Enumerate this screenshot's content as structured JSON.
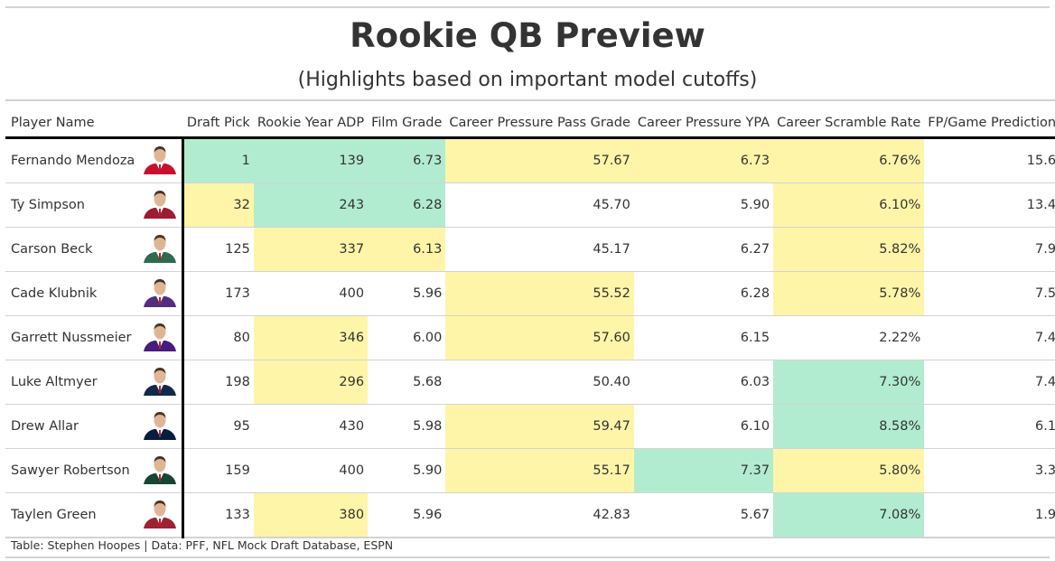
{
  "title": "Rookie QB Preview",
  "subtitle": "(Highlights based on important model cutoffs)",
  "source": "Table: Stephen Hoopes | Data: PFF, NFL Mock Draft Database, ESPN",
  "colors": {
    "green": "#b1ecd0",
    "yellow": "#fef5a8"
  },
  "chart_data": {
    "type": "table",
    "columns": [
      "Player Name",
      "Draft Pick",
      "Rookie Year ADP",
      "Film Grade",
      "Career Pressure Pass Grade",
      "Career Pressure YPA",
      "Career Scramble Rate",
      "FP/Game Prediction"
    ],
    "rows": [
      {
        "name": "Fernando Mendoza",
        "values": [
          "1",
          "139",
          "6.73",
          "57.67",
          "6.73",
          "6.76%",
          "15.6"
        ],
        "highlight": [
          "g",
          "g",
          "g",
          "y",
          "y",
          "y",
          ""
        ],
        "suit": "#c8102e"
      },
      {
        "name": "Ty Simpson",
        "values": [
          "32",
          "243",
          "6.28",
          "45.70",
          "5.90",
          "6.10%",
          "13.4"
        ],
        "highlight": [
          "y",
          "g",
          "g",
          "",
          "",
          "y",
          ""
        ],
        "suit": "#9e1b32"
      },
      {
        "name": "Carson Beck",
        "values": [
          "125",
          "337",
          "6.13",
          "45.17",
          "6.27",
          "5.82%",
          "7.9"
        ],
        "highlight": [
          "",
          "y",
          "y",
          "",
          "",
          "y",
          ""
        ],
        "suit": "#2e6b4f"
      },
      {
        "name": "Cade Klubnik",
        "values": [
          "173",
          "400",
          "5.96",
          "55.52",
          "6.28",
          "5.78%",
          "7.5"
        ],
        "highlight": [
          "",
          "",
          "",
          "y",
          "",
          "y",
          ""
        ],
        "suit": "#522d80"
      },
      {
        "name": "Garrett Nussmeier",
        "values": [
          "80",
          "346",
          "6.00",
          "57.60",
          "6.15",
          "2.22%",
          "7.4"
        ],
        "highlight": [
          "",
          "y",
          "",
          "y",
          "",
          "",
          ""
        ],
        "suit": "#461d7c"
      },
      {
        "name": "Luke Altmyer",
        "values": [
          "198",
          "296",
          "5.68",
          "50.40",
          "6.03",
          "7.30%",
          "7.4"
        ],
        "highlight": [
          "",
          "y",
          "",
          "",
          "",
          "g",
          ""
        ],
        "suit": "#13294b"
      },
      {
        "name": "Drew Allar",
        "values": [
          "95",
          "430",
          "5.98",
          "59.47",
          "6.10",
          "8.58%",
          "6.1"
        ],
        "highlight": [
          "",
          "",
          "",
          "y",
          "",
          "g",
          ""
        ],
        "suit": "#041e42"
      },
      {
        "name": "Sawyer Robertson",
        "values": [
          "159",
          "400",
          "5.90",
          "55.17",
          "7.37",
          "5.80%",
          "3.3"
        ],
        "highlight": [
          "",
          "",
          "",
          "y",
          "g",
          "y",
          ""
        ],
        "suit": "#154734"
      },
      {
        "name": "Taylen Green",
        "values": [
          "133",
          "380",
          "5.96",
          "42.83",
          "5.67",
          "7.08%",
          "1.9"
        ],
        "highlight": [
          "",
          "y",
          "",
          "",
          "",
          "g",
          ""
        ],
        "suit": "#9d2235"
      }
    ]
  }
}
